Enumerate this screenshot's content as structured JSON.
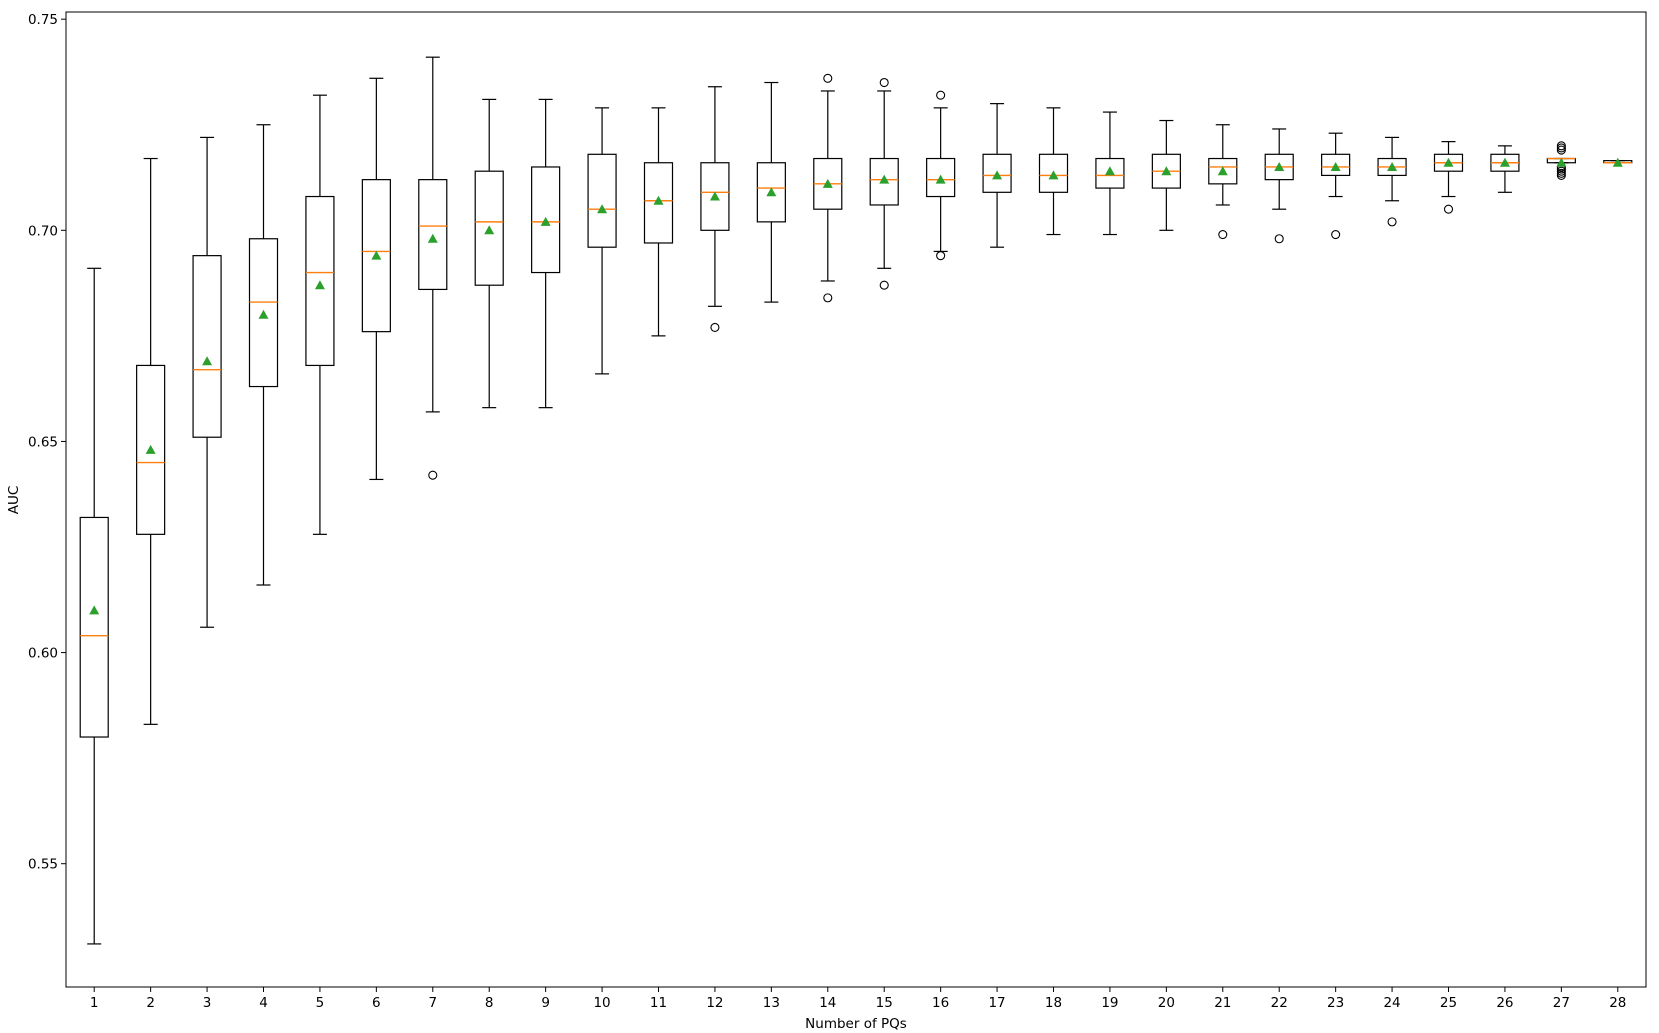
{
  "chart_data": {
    "type": "box",
    "title": "",
    "xlabel": "Number of PQs",
    "ylabel": "AUC",
    "ylim": [
      0.5208,
      0.7517
    ],
    "xlim": [
      0.5,
      28.5
    ],
    "yticks": [
      0.55,
      0.6,
      0.65,
      0.7,
      0.75
    ],
    "ytick_labels": [
      "0.55",
      "0.60",
      "0.65",
      "0.70",
      "0.75"
    ],
    "categories": [
      "1",
      "2",
      "3",
      "4",
      "5",
      "6",
      "7",
      "8",
      "9",
      "10",
      "11",
      "12",
      "13",
      "14",
      "15",
      "16",
      "17",
      "18",
      "19",
      "20",
      "21",
      "22",
      "23",
      "24",
      "25",
      "26",
      "27",
      "28"
    ],
    "grid": false,
    "legend": "none",
    "colors": {
      "box": "#000000",
      "median": "#ff7f0e",
      "mean": "#2ca02c",
      "outlier": "#000000"
    },
    "boxes": [
      {
        "label": "1",
        "whislo": 0.531,
        "q1": 0.58,
        "med": 0.604,
        "q3": 0.632,
        "whishi": 0.691,
        "mean": 0.61,
        "fliers": []
      },
      {
        "label": "2",
        "whislo": 0.583,
        "q1": 0.628,
        "med": 0.645,
        "q3": 0.668,
        "whishi": 0.717,
        "mean": 0.648,
        "fliers": []
      },
      {
        "label": "3",
        "whislo": 0.606,
        "q1": 0.651,
        "med": 0.667,
        "q3": 0.694,
        "whishi": 0.722,
        "mean": 0.669,
        "fliers": []
      },
      {
        "label": "4",
        "whislo": 0.616,
        "q1": 0.663,
        "med": 0.683,
        "q3": 0.698,
        "whishi": 0.725,
        "mean": 0.68,
        "fliers": []
      },
      {
        "label": "5",
        "whislo": 0.628,
        "q1": 0.668,
        "med": 0.69,
        "q3": 0.708,
        "whishi": 0.732,
        "mean": 0.687,
        "fliers": []
      },
      {
        "label": "6",
        "whislo": 0.641,
        "q1": 0.676,
        "med": 0.695,
        "q3": 0.712,
        "whishi": 0.736,
        "mean": 0.694,
        "fliers": []
      },
      {
        "label": "7",
        "whislo": 0.657,
        "q1": 0.686,
        "med": 0.701,
        "q3": 0.712,
        "whishi": 0.741,
        "mean": 0.698,
        "fliers": [
          0.642
        ]
      },
      {
        "label": "8",
        "whislo": 0.658,
        "q1": 0.687,
        "med": 0.702,
        "q3": 0.714,
        "whishi": 0.731,
        "mean": 0.7,
        "fliers": []
      },
      {
        "label": "9",
        "whislo": 0.658,
        "q1": 0.69,
        "med": 0.702,
        "q3": 0.715,
        "whishi": 0.731,
        "mean": 0.702,
        "fliers": []
      },
      {
        "label": "10",
        "whislo": 0.666,
        "q1": 0.696,
        "med": 0.705,
        "q3": 0.718,
        "whishi": 0.729,
        "mean": 0.705,
        "fliers": []
      },
      {
        "label": "11",
        "whislo": 0.675,
        "q1": 0.697,
        "med": 0.707,
        "q3": 0.716,
        "whishi": 0.729,
        "mean": 0.707,
        "fliers": []
      },
      {
        "label": "12",
        "whislo": 0.682,
        "q1": 0.7,
        "med": 0.709,
        "q3": 0.716,
        "whishi": 0.734,
        "mean": 0.708,
        "fliers": [
          0.677
        ]
      },
      {
        "label": "13",
        "whislo": 0.683,
        "q1": 0.702,
        "med": 0.71,
        "q3": 0.716,
        "whishi": 0.735,
        "mean": 0.709,
        "fliers": []
      },
      {
        "label": "14",
        "whislo": 0.688,
        "q1": 0.705,
        "med": 0.711,
        "q3": 0.717,
        "whishi": 0.733,
        "mean": 0.711,
        "fliers": [
          0.684,
          0.736
        ]
      },
      {
        "label": "15",
        "whislo": 0.691,
        "q1": 0.706,
        "med": 0.712,
        "q3": 0.717,
        "whishi": 0.733,
        "mean": 0.712,
        "fliers": [
          0.687,
          0.735
        ]
      },
      {
        "label": "16",
        "whislo": 0.695,
        "q1": 0.708,
        "med": 0.712,
        "q3": 0.717,
        "whishi": 0.729,
        "mean": 0.712,
        "fliers": [
          0.694,
          0.732
        ]
      },
      {
        "label": "17",
        "whislo": 0.696,
        "q1": 0.709,
        "med": 0.713,
        "q3": 0.718,
        "whishi": 0.73,
        "mean": 0.713,
        "fliers": []
      },
      {
        "label": "18",
        "whislo": 0.699,
        "q1": 0.709,
        "med": 0.713,
        "q3": 0.718,
        "whishi": 0.729,
        "mean": 0.713,
        "fliers": []
      },
      {
        "label": "19",
        "whislo": 0.699,
        "q1": 0.71,
        "med": 0.713,
        "q3": 0.717,
        "whishi": 0.728,
        "mean": 0.714,
        "fliers": []
      },
      {
        "label": "20",
        "whislo": 0.7,
        "q1": 0.71,
        "med": 0.714,
        "q3": 0.718,
        "whishi": 0.726,
        "mean": 0.714,
        "fliers": []
      },
      {
        "label": "21",
        "whislo": 0.706,
        "q1": 0.711,
        "med": 0.715,
        "q3": 0.717,
        "whishi": 0.725,
        "mean": 0.714,
        "fliers": [
          0.699
        ]
      },
      {
        "label": "22",
        "whislo": 0.705,
        "q1": 0.712,
        "med": 0.715,
        "q3": 0.718,
        "whishi": 0.724,
        "mean": 0.715,
        "fliers": [
          0.698
        ]
      },
      {
        "label": "23",
        "whislo": 0.708,
        "q1": 0.713,
        "med": 0.715,
        "q3": 0.718,
        "whishi": 0.723,
        "mean": 0.715,
        "fliers": [
          0.699
        ]
      },
      {
        "label": "24",
        "whislo": 0.707,
        "q1": 0.713,
        "med": 0.715,
        "q3": 0.717,
        "whishi": 0.722,
        "mean": 0.715,
        "fliers": [
          0.702
        ]
      },
      {
        "label": "25",
        "whislo": 0.708,
        "q1": 0.714,
        "med": 0.716,
        "q3": 0.718,
        "whishi": 0.721,
        "mean": 0.716,
        "fliers": [
          0.705
        ]
      },
      {
        "label": "26",
        "whislo": 0.709,
        "q1": 0.714,
        "med": 0.716,
        "q3": 0.718,
        "whishi": 0.72,
        "mean": 0.716,
        "fliers": []
      },
      {
        "label": "27",
        "whislo": 0.716,
        "q1": 0.716,
        "med": 0.717,
        "q3": 0.717,
        "whishi": 0.717,
        "mean": 0.716,
        "fliers": [
          0.713,
          0.7135,
          0.714,
          0.7145,
          0.715,
          0.719,
          0.7195,
          0.72
        ]
      },
      {
        "label": "28",
        "whislo": 0.716,
        "q1": 0.716,
        "med": 0.716,
        "q3": 0.7165,
        "whishi": 0.7165,
        "mean": 0.716,
        "fliers": []
      }
    ]
  }
}
